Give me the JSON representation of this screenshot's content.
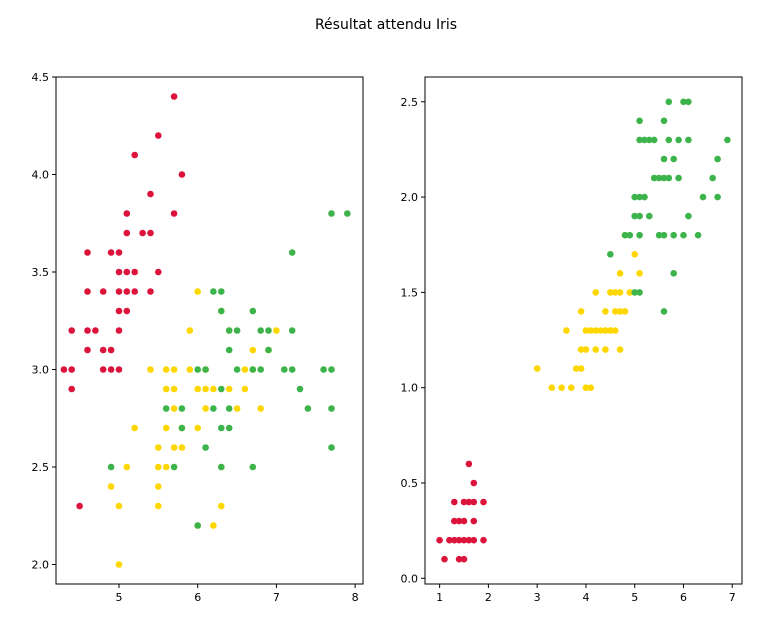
{
  "title": "Résultat attendu Iris",
  "colors": {
    "setosa": "#dc143c",
    "versicolor": "#ffd700",
    "virginica": "#3cb44b"
  },
  "chart_data": [
    {
      "type": "scatter",
      "title": "",
      "xlabel": "",
      "ylabel": "",
      "xlim": [
        4.2,
        8.1
      ],
      "ylim": [
        1.9,
        4.5
      ],
      "xticks": [
        5,
        6,
        7,
        8
      ],
      "yticks": [
        2.0,
        2.5,
        3.0,
        3.5,
        4.0,
        4.5
      ],
      "grid": false,
      "series": [
        {
          "color_key": "setosa",
          "points": [
            [
              4.3,
              3.0
            ],
            [
              4.4,
              2.9
            ],
            [
              4.4,
              3.0
            ],
            [
              4.4,
              3.2
            ],
            [
              4.5,
              2.3
            ],
            [
              4.6,
              3.1
            ],
            [
              4.6,
              3.2
            ],
            [
              4.6,
              3.4
            ],
            [
              4.6,
              3.6
            ],
            [
              4.7,
              3.2
            ],
            [
              4.8,
              3.0
            ],
            [
              4.8,
              3.1
            ],
            [
              4.8,
              3.4
            ],
            [
              4.9,
              3.0
            ],
            [
              4.9,
              3.1
            ],
            [
              4.9,
              3.6
            ],
            [
              5.0,
              3.0
            ],
            [
              5.0,
              3.2
            ],
            [
              5.0,
              3.3
            ],
            [
              5.0,
              3.4
            ],
            [
              5.0,
              3.5
            ],
            [
              5.0,
              3.6
            ],
            [
              5.1,
              3.3
            ],
            [
              5.1,
              3.4
            ],
            [
              5.1,
              3.5
            ],
            [
              5.1,
              3.7
            ],
            [
              5.1,
              3.8
            ],
            [
              5.2,
              3.4
            ],
            [
              5.2,
              3.5
            ],
            [
              5.2,
              4.1
            ],
            [
              5.3,
              3.7
            ],
            [
              5.4,
              3.4
            ],
            [
              5.4,
              3.7
            ],
            [
              5.4,
              3.9
            ],
            [
              5.5,
              3.5
            ],
            [
              5.5,
              4.2
            ],
            [
              5.7,
              3.8
            ],
            [
              5.7,
              4.4
            ],
            [
              5.8,
              4.0
            ]
          ]
        },
        {
          "color_key": "versicolor",
          "points": [
            [
              4.9,
              2.4
            ],
            [
              5.0,
              2.0
            ],
            [
              5.0,
              2.3
            ],
            [
              5.1,
              2.5
            ],
            [
              5.2,
              2.7
            ],
            [
              5.4,
              3.0
            ],
            [
              5.5,
              2.3
            ],
            [
              5.5,
              2.4
            ],
            [
              5.5,
              2.5
            ],
            [
              5.5,
              2.6
            ],
            [
              5.6,
              2.5
            ],
            [
              5.6,
              2.7
            ],
            [
              5.6,
              2.9
            ],
            [
              5.6,
              3.0
            ],
            [
              5.7,
              2.6
            ],
            [
              5.7,
              2.8
            ],
            [
              5.7,
              2.9
            ],
            [
              5.7,
              3.0
            ],
            [
              5.8,
              2.6
            ],
            [
              5.8,
              2.7
            ],
            [
              5.9,
              3.0
            ],
            [
              5.9,
              3.2
            ],
            [
              6.0,
              2.2
            ],
            [
              6.0,
              2.7
            ],
            [
              6.0,
              2.9
            ],
            [
              6.0,
              3.4
            ],
            [
              6.1,
              2.8
            ],
            [
              6.1,
              2.9
            ],
            [
              6.1,
              3.0
            ],
            [
              6.2,
              2.2
            ],
            [
              6.2,
              2.9
            ],
            [
              6.3,
              2.3
            ],
            [
              6.3,
              2.5
            ],
            [
              6.3,
              3.3
            ],
            [
              6.4,
              2.9
            ],
            [
              6.4,
              3.2
            ],
            [
              6.5,
              2.8
            ],
            [
              6.6,
              2.9
            ],
            [
              6.6,
              3.0
            ],
            [
              6.7,
              3.0
            ],
            [
              6.7,
              3.1
            ],
            [
              6.8,
              2.8
            ],
            [
              6.9,
              3.1
            ],
            [
              7.0,
              3.2
            ]
          ]
        },
        {
          "color_key": "virginica",
          "points": [
            [
              4.9,
              2.5
            ],
            [
              5.6,
              2.8
            ],
            [
              5.7,
              2.5
            ],
            [
              5.8,
              2.7
            ],
            [
              5.8,
              2.8
            ],
            [
              6.0,
              2.2
            ],
            [
              6.0,
              3.0
            ],
            [
              6.1,
              2.6
            ],
            [
              6.1,
              3.0
            ],
            [
              6.2,
              2.8
            ],
            [
              6.2,
              3.4
            ],
            [
              6.3,
              2.5
            ],
            [
              6.3,
              2.7
            ],
            [
              6.3,
              2.9
            ],
            [
              6.3,
              3.3
            ],
            [
              6.3,
              3.4
            ],
            [
              6.4,
              2.7
            ],
            [
              6.4,
              2.8
            ],
            [
              6.4,
              3.1
            ],
            [
              6.4,
              3.2
            ],
            [
              6.5,
              3.0
            ],
            [
              6.5,
              3.2
            ],
            [
              6.7,
              2.5
            ],
            [
              6.7,
              3.0
            ],
            [
              6.7,
              3.3
            ],
            [
              6.8,
              3.0
            ],
            [
              6.8,
              3.2
            ],
            [
              6.9,
              3.1
            ],
            [
              6.9,
              3.2
            ],
            [
              7.1,
              3.0
            ],
            [
              7.2,
              3.0
            ],
            [
              7.2,
              3.2
            ],
            [
              7.2,
              3.6
            ],
            [
              7.3,
              2.9
            ],
            [
              7.4,
              2.8
            ],
            [
              7.6,
              3.0
            ],
            [
              7.7,
              2.6
            ],
            [
              7.7,
              2.8
            ],
            [
              7.7,
              3.0
            ],
            [
              7.7,
              3.8
            ],
            [
              7.9,
              3.8
            ]
          ]
        }
      ]
    },
    {
      "type": "scatter",
      "title": "",
      "xlabel": "",
      "ylabel": "",
      "xlim": [
        0.7,
        7.2
      ],
      "ylim": [
        -0.03,
        2.63
      ],
      "xticks": [
        1,
        2,
        3,
        4,
        5,
        6,
        7
      ],
      "yticks": [
        0.0,
        0.5,
        1.0,
        1.5,
        2.0,
        2.5
      ],
      "grid": false,
      "series": [
        {
          "color_key": "setosa",
          "points": [
            [
              1.0,
              0.2
            ],
            [
              1.1,
              0.1
            ],
            [
              1.2,
              0.2
            ],
            [
              1.3,
              0.2
            ],
            [
              1.3,
              0.3
            ],
            [
              1.3,
              0.4
            ],
            [
              1.4,
              0.1
            ],
            [
              1.4,
              0.2
            ],
            [
              1.4,
              0.3
            ],
            [
              1.5,
              0.1
            ],
            [
              1.5,
              0.2
            ],
            [
              1.5,
              0.3
            ],
            [
              1.5,
              0.4
            ],
            [
              1.6,
              0.2
            ],
            [
              1.6,
              0.4
            ],
            [
              1.6,
              0.6
            ],
            [
              1.7,
              0.2
            ],
            [
              1.7,
              0.3
            ],
            [
              1.7,
              0.4
            ],
            [
              1.7,
              0.5
            ],
            [
              1.9,
              0.2
            ],
            [
              1.9,
              0.4
            ]
          ]
        },
        {
          "color_key": "versicolor",
          "points": [
            [
              3.0,
              1.1
            ],
            [
              3.3,
              1.0
            ],
            [
              3.5,
              1.0
            ],
            [
              3.6,
              1.3
            ],
            [
              3.7,
              1.0
            ],
            [
              3.8,
              1.1
            ],
            [
              3.9,
              1.1
            ],
            [
              3.9,
              1.2
            ],
            [
              3.9,
              1.4
            ],
            [
              4.0,
              1.0
            ],
            [
              4.0,
              1.2
            ],
            [
              4.0,
              1.3
            ],
            [
              4.1,
              1.0
            ],
            [
              4.1,
              1.3
            ],
            [
              4.2,
              1.2
            ],
            [
              4.2,
              1.3
            ],
            [
              4.2,
              1.5
            ],
            [
              4.3,
              1.3
            ],
            [
              4.4,
              1.2
            ],
            [
              4.4,
              1.3
            ],
            [
              4.4,
              1.4
            ],
            [
              4.5,
              1.3
            ],
            [
              4.5,
              1.5
            ],
            [
              4.6,
              1.3
            ],
            [
              4.6,
              1.4
            ],
            [
              4.6,
              1.5
            ],
            [
              4.7,
              1.2
            ],
            [
              4.7,
              1.4
            ],
            [
              4.7,
              1.5
            ],
            [
              4.7,
              1.6
            ],
            [
              4.8,
              1.4
            ],
            [
              4.8,
              1.8
            ],
            [
              4.9,
              1.5
            ],
            [
              5.0,
              1.7
            ],
            [
              5.1,
              1.6
            ]
          ]
        },
        {
          "color_key": "virginica",
          "points": [
            [
              4.5,
              1.7
            ],
            [
              4.8,
              1.8
            ],
            [
              4.9,
              1.8
            ],
            [
              5.0,
              1.5
            ],
            [
              5.0,
              1.9
            ],
            [
              5.0,
              2.0
            ],
            [
              5.1,
              1.5
            ],
            [
              5.1,
              1.8
            ],
            [
              5.1,
              1.9
            ],
            [
              5.1,
              2.0
            ],
            [
              5.1,
              2.3
            ],
            [
              5.1,
              2.4
            ],
            [
              5.2,
              2.0
            ],
            [
              5.2,
              2.3
            ],
            [
              5.3,
              1.9
            ],
            [
              5.3,
              2.3
            ],
            [
              5.4,
              2.1
            ],
            [
              5.4,
              2.3
            ],
            [
              5.5,
              1.8
            ],
            [
              5.5,
              2.1
            ],
            [
              5.6,
              1.4
            ],
            [
              5.6,
              1.8
            ],
            [
              5.6,
              2.1
            ],
            [
              5.6,
              2.2
            ],
            [
              5.6,
              2.4
            ],
            [
              5.7,
              2.1
            ],
            [
              5.7,
              2.3
            ],
            [
              5.7,
              2.5
            ],
            [
              5.8,
              1.6
            ],
            [
              5.8,
              1.8
            ],
            [
              5.8,
              2.2
            ],
            [
              5.9,
              2.1
            ],
            [
              5.9,
              2.3
            ],
            [
              6.0,
              1.8
            ],
            [
              6.0,
              2.5
            ],
            [
              6.1,
              1.9
            ],
            [
              6.1,
              2.3
            ],
            [
              6.1,
              2.5
            ],
            [
              6.3,
              1.8
            ],
            [
              6.4,
              2.0
            ],
            [
              6.6,
              2.1
            ],
            [
              6.7,
              2.0
            ],
            [
              6.7,
              2.2
            ],
            [
              6.9,
              2.3
            ]
          ]
        }
      ]
    }
  ]
}
